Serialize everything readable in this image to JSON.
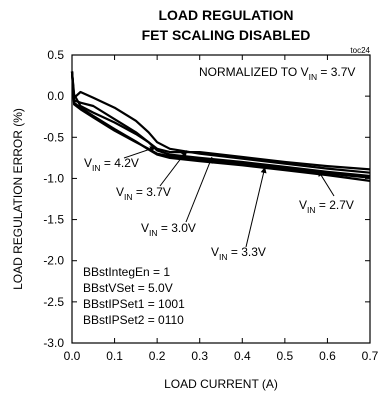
{
  "chart_data": {
    "type": "line",
    "title": "LOAD REGULATION",
    "subtitle": "FET SCALING DISABLED",
    "figure_id": "toc24",
    "xlabel": "LOAD CURRENT (A)",
    "ylabel": "LOAD REGULATION ERROR (%)",
    "xlim": [
      0,
      0.7
    ],
    "ylim": [
      -3.0,
      0.5
    ],
    "x_ticks": [
      0,
      0.1,
      0.2,
      0.3,
      0.4,
      0.5,
      0.6,
      0.7
    ],
    "x_tick_labels": [
      "0.0",
      "0.1",
      "0.2",
      "0.3",
      "0.4",
      "0.5",
      "0.6",
      "0.7"
    ],
    "y_ticks": [
      0.5,
      0,
      -0.5,
      -1.0,
      -1.5,
      -2.0,
      -2.5,
      -3.0
    ],
    "y_tick_labels": [
      "0.5",
      "0.0",
      "-0.5",
      "-1.0",
      "-1.5",
      "-2.0",
      "-2.5",
      "-3.0"
    ],
    "grid": false,
    "annotations": [
      {
        "base": "NORMALIZED TO V",
        "sub": "IN",
        "suffix": " = 3.7V"
      },
      {
        "base": "V",
        "sub": "IN",
        "suffix": " = 4.2V"
      },
      {
        "base": "V",
        "sub": "IN",
        "suffix": " = 3.7V"
      },
      {
        "base": "V",
        "sub": "IN",
        "suffix": " = 3.0V"
      },
      {
        "base": "V",
        "sub": "IN",
        "suffix": " = 3.3V"
      },
      {
        "base": "V",
        "sub": "IN",
        "suffix": " = 2.7V"
      }
    ],
    "settings": [
      "BBstIntegEn = 1",
      "BBstVSet = 5.0V",
      "BBstIPSet1 = 1001",
      "BBstIPSet2 = 0110"
    ],
    "series": [
      {
        "x": [
          0.0,
          0.005,
          0.02,
          0.05,
          0.1,
          0.15,
          0.18,
          0.2,
          0.23,
          0.3,
          0.4,
          0.5,
          0.6,
          0.7
        ],
        "y": [
          0.3,
          0.02,
          -0.12,
          -0.2,
          -0.32,
          -0.46,
          -0.56,
          -0.66,
          -0.71,
          -0.75,
          -0.8,
          -0.86,
          -0.92,
          -0.97
        ]
      },
      {
        "x": [
          0.0,
          0.005,
          0.02,
          0.05,
          0.1,
          0.15,
          0.18,
          0.2,
          0.23,
          0.3,
          0.4,
          0.5,
          0.6,
          0.7
        ],
        "y": [
          0.3,
          -0.02,
          0.05,
          -0.02,
          -0.14,
          -0.3,
          -0.44,
          -0.56,
          -0.64,
          -0.7,
          -0.76,
          -0.82,
          -0.88,
          -0.93
        ]
      },
      {
        "x": [
          0.0,
          0.005,
          0.02,
          0.05,
          0.1,
          0.15,
          0.18,
          0.2,
          0.23,
          0.3,
          0.4,
          0.5,
          0.6,
          0.7
        ],
        "y": [
          0.3,
          -0.05,
          -0.08,
          -0.12,
          -0.28,
          -0.44,
          -0.56,
          -0.64,
          -0.68,
          -0.68,
          -0.74,
          -0.8,
          -0.85,
          -0.89
        ]
      },
      {
        "x": [
          0.0,
          0.005,
          0.02,
          0.05,
          0.1,
          0.15,
          0.18,
          0.2,
          0.23,
          0.3,
          0.4,
          0.5,
          0.6,
          0.7
        ],
        "y": [
          0.3,
          -0.08,
          -0.14,
          -0.24,
          -0.4,
          -0.55,
          -0.65,
          -0.71,
          -0.75,
          -0.79,
          -0.84,
          -0.9,
          -0.96,
          -1.03
        ]
      },
      {
        "x": [
          0.0,
          0.005,
          0.02,
          0.05,
          0.1,
          0.15,
          0.18,
          0.2,
          0.23,
          0.3,
          0.4,
          0.5,
          0.6,
          0.7
        ],
        "y": [
          0.3,
          -0.1,
          -0.16,
          -0.26,
          -0.42,
          -0.56,
          -0.64,
          -0.7,
          -0.73,
          -0.77,
          -0.82,
          -0.88,
          -0.94,
          -0.99
        ]
      }
    ]
  }
}
